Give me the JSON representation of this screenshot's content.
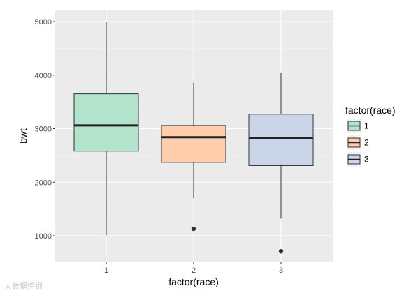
{
  "chart_data": {
    "type": "boxplot",
    "xlabel": "factor(race)",
    "ylabel": "bwt",
    "ylim": [
      800,
      5100
    ],
    "yticks": [
      1000,
      2000,
      3000,
      4000,
      5000
    ],
    "categories": [
      "1",
      "2",
      "3"
    ],
    "boxes": [
      {
        "category": "1",
        "whisker_low": 1010,
        "q1": 2580,
        "median": 3060,
        "q3": 3650,
        "whisker_high": 4990,
        "outliers": [],
        "fill": "#b3e2cd"
      },
      {
        "category": "2",
        "whisker_low": 1700,
        "q1": 2370,
        "median": 2840,
        "q3": 3060,
        "whisker_high": 3860,
        "outliers": [
          1130
        ],
        "fill": "#fdcdac"
      },
      {
        "category": "3",
        "whisker_low": 1320,
        "q1": 2310,
        "median": 2830,
        "q3": 3270,
        "whisker_high": 4050,
        "outliers": [
          710
        ],
        "fill": "#cbd5e8"
      }
    ],
    "legend": {
      "title": "factor(race)",
      "position": "right",
      "entries": [
        {
          "label": "1",
          "fill": "#b3e2cd"
        },
        {
          "label": "2",
          "fill": "#fdcdac"
        },
        {
          "label": "3",
          "fill": "#cbd5e8"
        }
      ]
    },
    "grid": true,
    "panel_background": "#ebebeb"
  },
  "watermark": "大数据挖掘"
}
